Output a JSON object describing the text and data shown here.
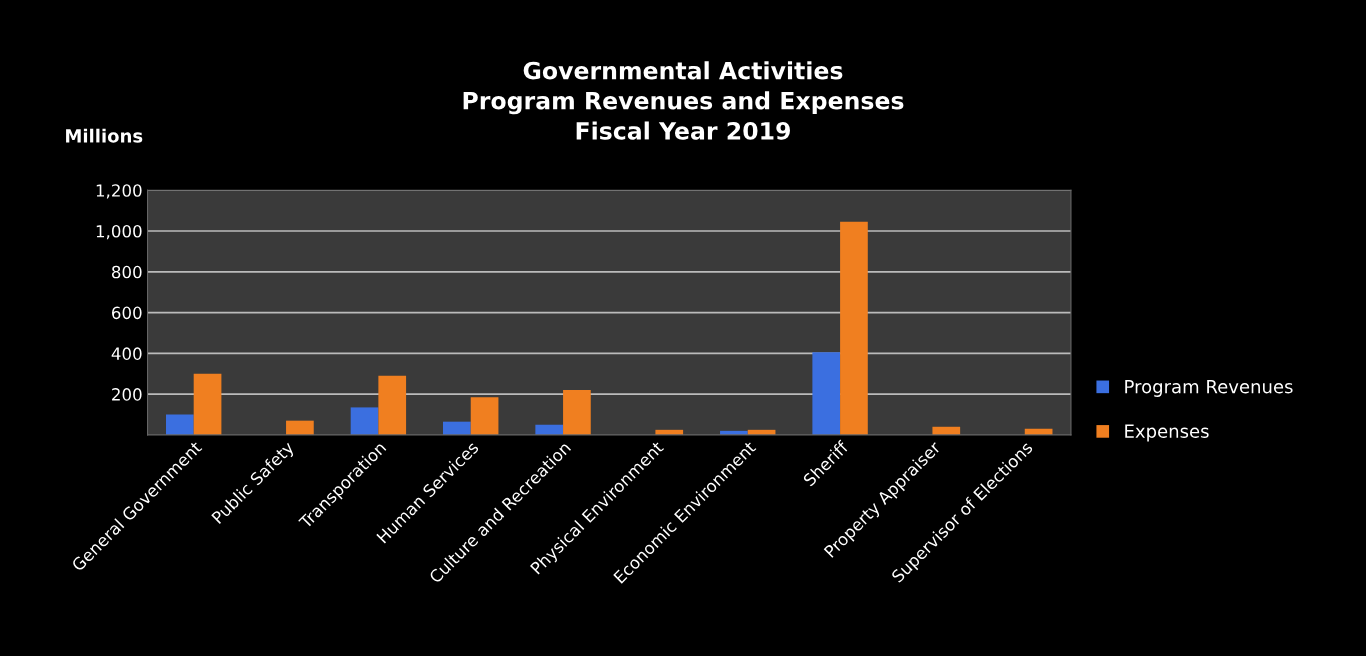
{
  "chart_data": {
    "type": "bar",
    "title": "Governmental Activities\nProgram Revenues and Expenses\nFiscal Year 2019",
    "ylabel": "Millions",
    "categories": [
      "General Government",
      "Public Safety",
      "Transporation",
      "Human Services",
      "Culture and Recreation",
      "Physical Environment",
      "Economic Environment",
      "Sheriff",
      "Property Appraiser",
      "Supervisor of Elections"
    ],
    "series": [
      {
        "name": "Program Revenues",
        "color": "#3b6fe0",
        "values": [
          100,
          null,
          135,
          65,
          50,
          null,
          20,
          405,
          null,
          null
        ]
      },
      {
        "name": "Expenses",
        "color": "#f07f20",
        "values": [
          300,
          70,
          290,
          185,
          220,
          25,
          25,
          1045,
          40,
          30
        ]
      }
    ],
    "ylim": [
      0,
      1200
    ],
    "yticks": [
      200,
      400,
      600,
      800,
      {
        "value": 1000,
        "label": "1,000"
      },
      {
        "value": 1200,
        "label": "1,200"
      }
    ],
    "grid": "y",
    "legend": "right"
  }
}
